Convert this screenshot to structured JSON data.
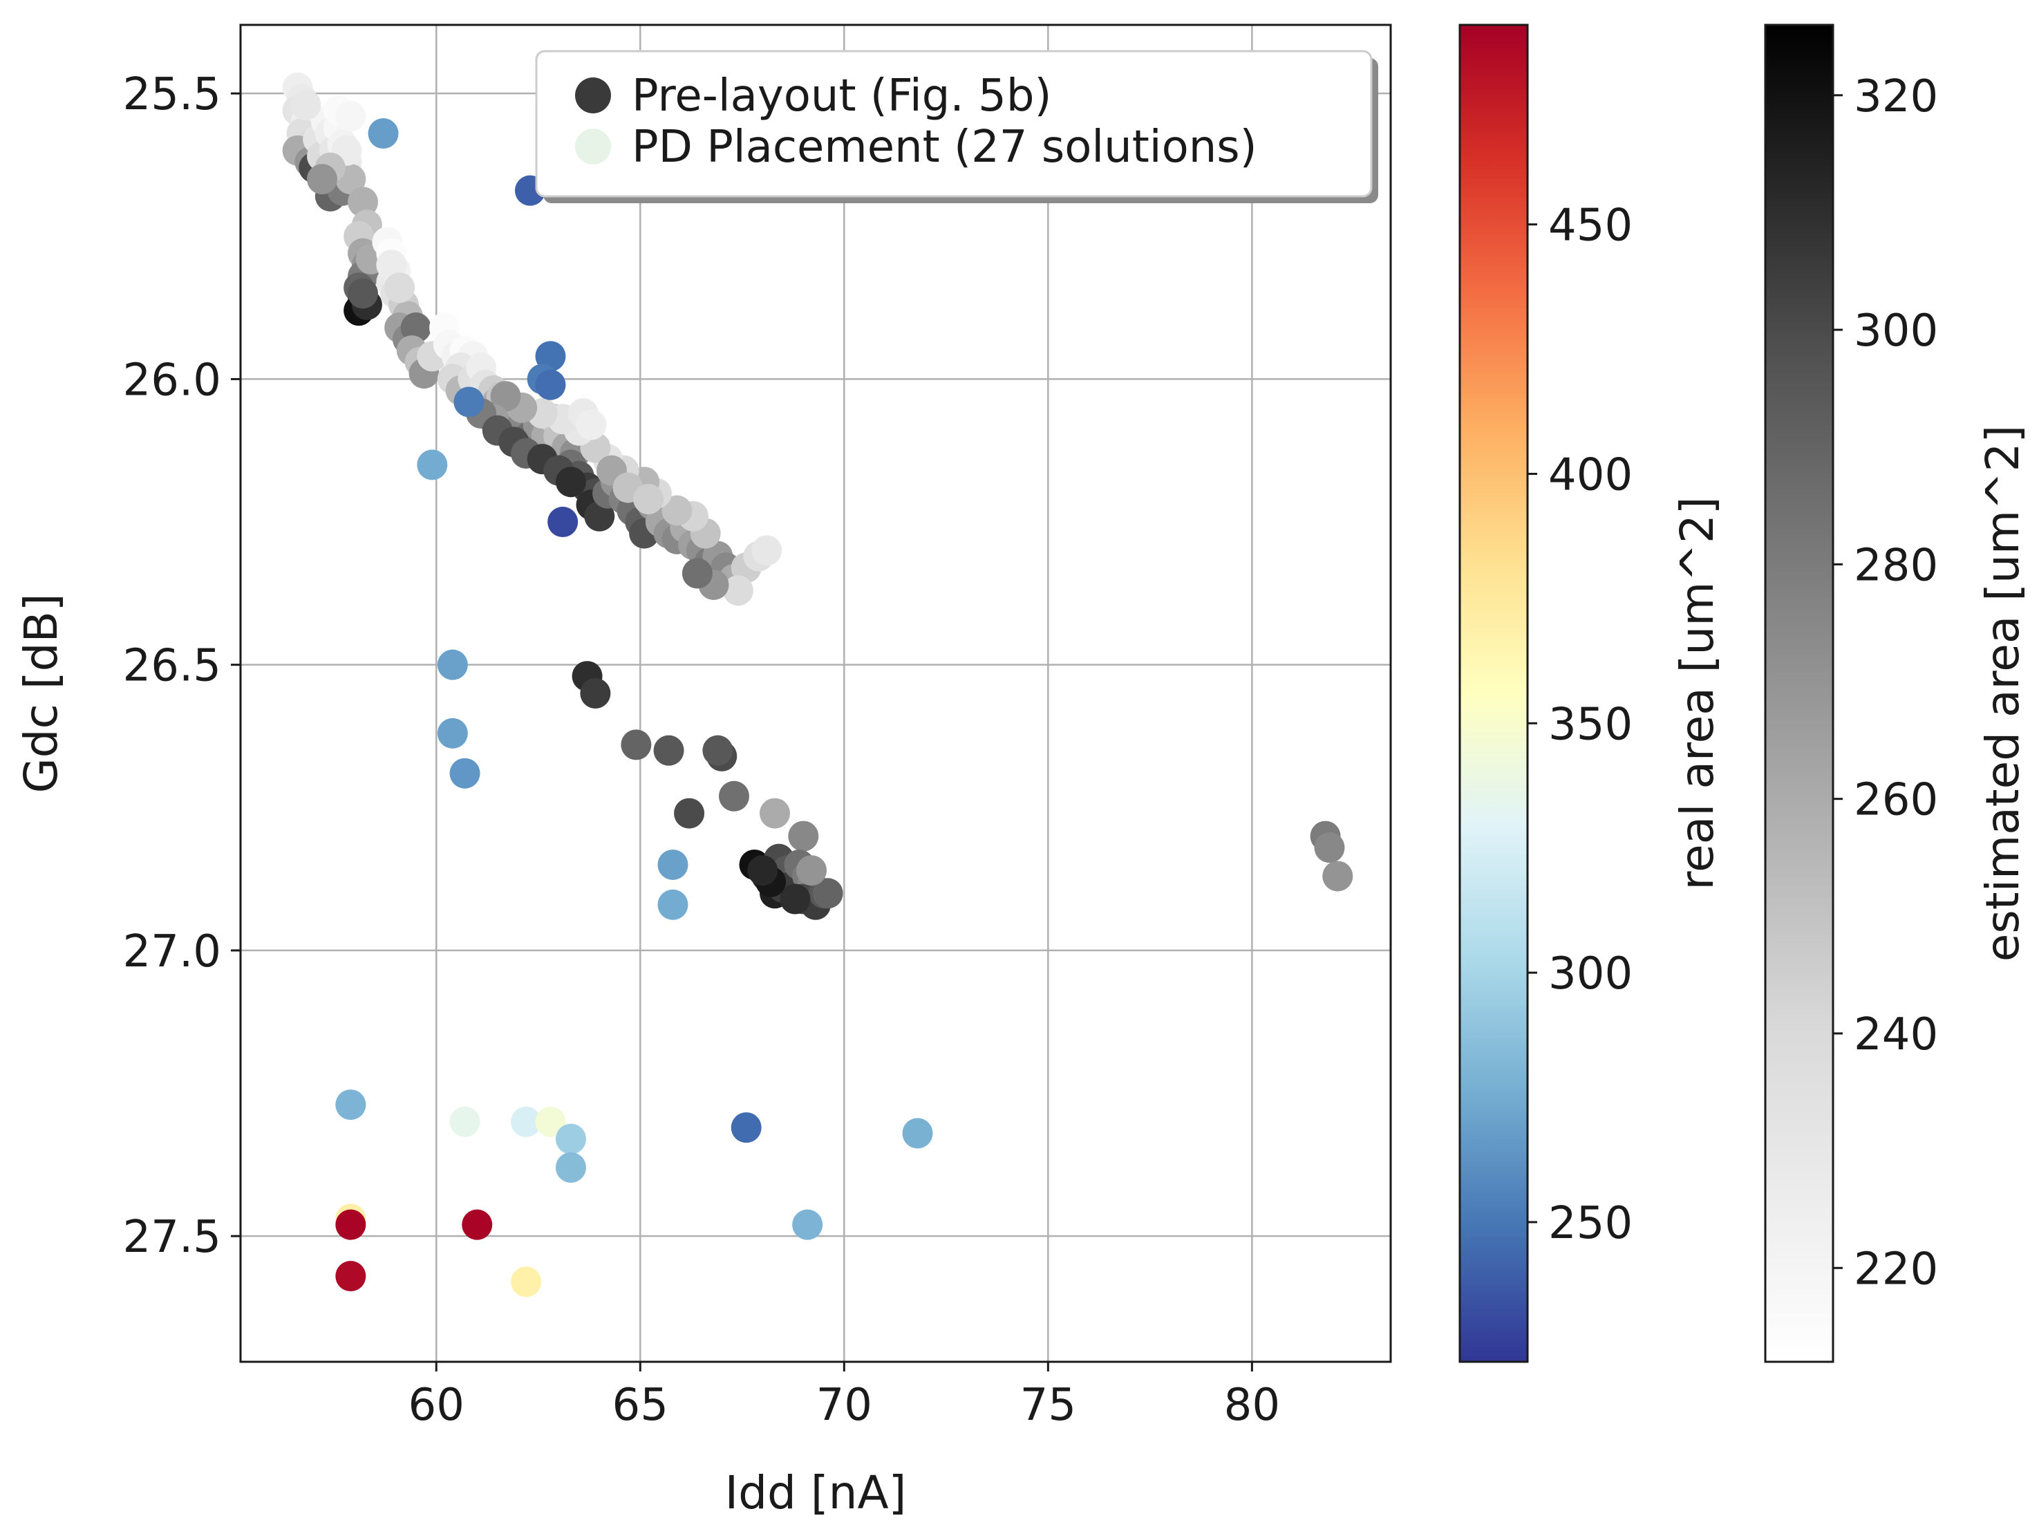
{
  "chart_data": {
    "type": "scatter",
    "xlabel": "Idd [nA]",
    "ylabel": "Gdc [dB]",
    "xlim": [
      55.2,
      83.4
    ],
    "ylim": [
      27.72,
      25.38
    ],
    "y_inverted": true,
    "grid": true,
    "xticks": [
      {
        "value": 60,
        "label": "60"
      },
      {
        "value": 65,
        "label": "65"
      },
      {
        "value": 70,
        "label": "70"
      },
      {
        "value": 75,
        "label": "75"
      },
      {
        "value": 80,
        "label": "80"
      }
    ],
    "yticks": [
      {
        "value": 25.5,
        "label": "25.5"
      },
      {
        "value": 26.0,
        "label": "26.0"
      },
      {
        "value": 26.5,
        "label": "26.5"
      },
      {
        "value": 27.0,
        "label": "27.0"
      },
      {
        "value": 27.5,
        "label": "27.5"
      }
    ],
    "legend": {
      "position": "top-right",
      "entries": [
        {
          "label": "Pre-layout (Fig. 5b)",
          "color": "#3a3a3a"
        },
        {
          "label": "PD Placement (27 solutions)",
          "color": "#e8f3e8"
        }
      ]
    },
    "colorbars": [
      {
        "label": "real area [um^2]",
        "range": [
          222,
          490
        ],
        "colormap": "RdYlBu_r",
        "ticks": [
          {
            "value": 250,
            "label": "250"
          },
          {
            "value": 300,
            "label": "300"
          },
          {
            "value": 350,
            "label": "350"
          },
          {
            "value": 400,
            "label": "400"
          },
          {
            "value": 450,
            "label": "450"
          }
        ]
      },
      {
        "label": "estimated area [um^2]",
        "range": [
          212,
          326
        ],
        "colormap": "Greys",
        "ticks": [
          {
            "value": 220,
            "label": "220"
          },
          {
            "value": 240,
            "label": "240"
          },
          {
            "value": 260,
            "label": "260"
          },
          {
            "value": 280,
            "label": "280"
          },
          {
            "value": 300,
            "label": "300"
          },
          {
            "value": 320,
            "label": "320"
          }
        ]
      }
    ],
    "series": [
      {
        "name": "Pre-layout (Fig. 5b)",
        "color_scale": "estimated area [um^2]",
        "points": [
          [
            56.6,
            25.49,
            225
          ],
          [
            56.7,
            25.51,
            228
          ],
          [
            56.6,
            25.53,
            232
          ],
          [
            56.8,
            25.55,
            224
          ],
          [
            56.7,
            25.57,
            236
          ],
          [
            56.9,
            25.59,
            240
          ],
          [
            56.6,
            25.6,
            260
          ],
          [
            56.9,
            25.62,
            270
          ],
          [
            57.0,
            25.63,
            300
          ],
          [
            57.1,
            25.58,
            232
          ],
          [
            57.2,
            25.61,
            238
          ],
          [
            57.3,
            25.55,
            220
          ],
          [
            57.4,
            25.57,
            225
          ],
          [
            57.5,
            25.6,
            230
          ],
          [
            57.6,
            25.56,
            218
          ],
          [
            57.7,
            25.59,
            222
          ],
          [
            57.8,
            25.62,
            228
          ],
          [
            57.6,
            25.64,
            240
          ],
          [
            57.5,
            25.66,
            262
          ],
          [
            57.4,
            25.68,
            290
          ],
          [
            57.7,
            25.67,
            280
          ],
          [
            57.9,
            25.65,
            255
          ],
          [
            57.8,
            25.6,
            226
          ],
          [
            57.4,
            25.63,
            250
          ],
          [
            57.2,
            25.65,
            270
          ],
          [
            57.6,
            25.53,
            216
          ],
          [
            57.9,
            25.54,
            219
          ],
          [
            56.8,
            25.52,
            230
          ],
          [
            58.2,
            25.69,
            258
          ],
          [
            58.3,
            25.73,
            250
          ],
          [
            58.1,
            25.75,
            245
          ],
          [
            58.2,
            25.78,
            262
          ],
          [
            58.3,
            25.8,
            270
          ],
          [
            58.2,
            25.82,
            280
          ],
          [
            58.1,
            25.84,
            290
          ],
          [
            58.2,
            25.86,
            300
          ],
          [
            58.1,
            25.88,
            320
          ],
          [
            58.3,
            25.87,
            310
          ],
          [
            58.2,
            25.85,
            295
          ],
          [
            58.4,
            25.79,
            260
          ],
          [
            58.8,
            25.76,
            218
          ],
          [
            58.9,
            25.78,
            214
          ],
          [
            59.0,
            25.81,
            222
          ],
          [
            58.9,
            25.83,
            228
          ],
          [
            59.0,
            25.85,
            234
          ],
          [
            59.2,
            25.87,
            245
          ],
          [
            59.3,
            25.89,
            255
          ],
          [
            59.1,
            25.91,
            265
          ],
          [
            59.3,
            25.93,
            275
          ],
          [
            59.5,
            25.91,
            285
          ],
          [
            59.4,
            25.95,
            260
          ],
          [
            59.6,
            25.97,
            250
          ],
          [
            59.7,
            25.99,
            270
          ],
          [
            59.9,
            25.96,
            240
          ],
          [
            60.2,
            25.91,
            215
          ],
          [
            60.3,
            25.94,
            218
          ],
          [
            60.5,
            25.96,
            222
          ],
          [
            60.7,
            25.95,
            215
          ],
          [
            60.9,
            25.96,
            220
          ],
          [
            60.6,
            25.98,
            230
          ],
          [
            60.4,
            26.0,
            240
          ],
          [
            60.6,
            26.02,
            255
          ],
          [
            60.9,
            26.0,
            235
          ],
          [
            61.1,
            25.98,
            225
          ],
          [
            61.2,
            26.01,
            232
          ],
          [
            61.4,
            26.02,
            245
          ],
          [
            61.5,
            26.04,
            260
          ],
          [
            61.6,
            26.03,
            248
          ],
          [
            61.8,
            26.05,
            252
          ],
          [
            61.9,
            26.07,
            265
          ],
          [
            62.1,
            26.08,
            275
          ],
          [
            62.3,
            26.1,
            285
          ],
          [
            62.5,
            26.08,
            270
          ],
          [
            62.7,
            26.1,
            260
          ],
          [
            62.9,
            26.07,
            245
          ],
          [
            63.0,
            26.1,
            250
          ],
          [
            63.2,
            26.12,
            262
          ],
          [
            63.4,
            26.13,
            272
          ],
          [
            63.3,
            26.15,
            285
          ],
          [
            63.5,
            26.17,
            295
          ],
          [
            63.7,
            26.19,
            305
          ],
          [
            63.9,
            26.2,
            300
          ],
          [
            63.8,
            26.22,
            310
          ],
          [
            64.0,
            26.24,
            305
          ],
          [
            64.2,
            26.2,
            285
          ],
          [
            64.4,
            26.18,
            270
          ],
          [
            64.6,
            26.21,
            278
          ],
          [
            64.8,
            26.23,
            285
          ],
          [
            65.0,
            26.25,
            292
          ],
          [
            65.1,
            26.27,
            298
          ],
          [
            65.3,
            26.22,
            268
          ],
          [
            65.5,
            26.25,
            262
          ],
          [
            65.7,
            26.27,
            270
          ],
          [
            65.9,
            26.28,
            275
          ],
          [
            66.1,
            26.26,
            260
          ],
          [
            66.3,
            26.29,
            265
          ],
          [
            66.5,
            26.3,
            272
          ],
          [
            66.7,
            26.32,
            280
          ],
          [
            66.9,
            26.31,
            268
          ],
          [
            67.1,
            26.33,
            275
          ],
          [
            67.3,
            26.35,
            260
          ],
          [
            67.6,
            26.33,
            245
          ],
          [
            67.9,
            26.31,
            235
          ],
          [
            68.1,
            26.3,
            230
          ],
          [
            67.4,
            26.37,
            238
          ],
          [
            66.8,
            26.36,
            270
          ],
          [
            66.4,
            26.34,
            285
          ],
          [
            66.6,
            26.27,
            250
          ],
          [
            66.3,
            26.24,
            242
          ],
          [
            65.9,
            26.23,
            250
          ],
          [
            65.4,
            26.2,
            240
          ],
          [
            65.1,
            26.18,
            255
          ],
          [
            64.6,
            26.16,
            240
          ],
          [
            64.2,
            26.14,
            232
          ],
          [
            63.9,
            26.12,
            245
          ],
          [
            63.5,
            26.09,
            230
          ],
          [
            63.1,
            26.07,
            232
          ],
          [
            63.6,
            26.06,
            228
          ],
          [
            63.8,
            26.08,
            225
          ],
          [
            62.6,
            26.06,
            240
          ],
          [
            62.1,
            26.05,
            260
          ],
          [
            61.7,
            26.03,
            270
          ],
          [
            61.4,
            26.07,
            265
          ],
          [
            61.1,
            26.06,
            280
          ],
          [
            61.5,
            26.09,
            295
          ],
          [
            61.9,
            26.11,
            300
          ],
          [
            62.2,
            26.13,
            290
          ],
          [
            62.6,
            26.14,
            305
          ],
          [
            63.0,
            26.16,
            300
          ],
          [
            63.3,
            26.18,
            310
          ],
          [
            64.3,
            26.16,
            262
          ],
          [
            64.7,
            26.19,
            250
          ],
          [
            65.2,
            26.21,
            245
          ],
          [
            58.9,
            25.8,
            226
          ],
          [
            59.1,
            25.84,
            238
          ],
          [
            63.7,
            26.52,
            310
          ],
          [
            63.9,
            26.55,
            305
          ],
          [
            64.9,
            26.64,
            290
          ],
          [
            65.7,
            26.65,
            295
          ],
          [
            67.0,
            26.66,
            300
          ],
          [
            66.9,
            26.65,
            295
          ],
          [
            67.3,
            26.73,
            285
          ],
          [
            66.2,
            26.76,
            300
          ],
          [
            68.3,
            26.76,
            260
          ],
          [
            69.0,
            26.8,
            275
          ],
          [
            67.8,
            26.85,
            320
          ],
          [
            68.1,
            26.87,
            310
          ],
          [
            68.4,
            26.84,
            300
          ],
          [
            68.6,
            26.86,
            295
          ],
          [
            68.8,
            26.88,
            290
          ],
          [
            68.3,
            26.9,
            315
          ],
          [
            68.5,
            26.89,
            305
          ],
          [
            68.9,
            26.85,
            285
          ],
          [
            69.1,
            26.87,
            280
          ],
          [
            69.2,
            26.89,
            275
          ],
          [
            69.0,
            26.91,
            300
          ],
          [
            69.3,
            26.92,
            305
          ],
          [
            69.5,
            26.9,
            295
          ],
          [
            69.6,
            26.9,
            290
          ],
          [
            68.8,
            26.91,
            310
          ],
          [
            68.2,
            26.88,
            318
          ],
          [
            68.0,
            26.86,
            312
          ],
          [
            69.2,
            26.86,
            270
          ],
          [
            81.8,
            26.8,
            280
          ],
          [
            81.9,
            26.82,
            275
          ],
          [
            82.1,
            26.87,
            270
          ]
        ]
      },
      {
        "name": "PD Placement (27 solutions)",
        "color_scale": "real area [um^2]",
        "points": [
          [
            58.7,
            25.57,
            268
          ],
          [
            62.3,
            25.67,
            240
          ],
          [
            62.8,
            25.96,
            248
          ],
          [
            62.6,
            26.0,
            252
          ],
          [
            62.8,
            26.01,
            246
          ],
          [
            60.8,
            26.04,
            252
          ],
          [
            59.9,
            26.15,
            275
          ],
          [
            63.1,
            26.25,
            230
          ],
          [
            60.4,
            26.5,
            270
          ],
          [
            60.4,
            26.62,
            270
          ],
          [
            60.7,
            26.69,
            265
          ],
          [
            65.8,
            26.85,
            270
          ],
          [
            65.8,
            26.92,
            275
          ],
          [
            57.9,
            27.27,
            280
          ],
          [
            60.7,
            27.3,
            335
          ],
          [
            62.2,
            27.3,
            325
          ],
          [
            62.8,
            27.3,
            345
          ],
          [
            63.3,
            27.33,
            295
          ],
          [
            63.3,
            27.38,
            285
          ],
          [
            67.6,
            27.31,
            245
          ],
          [
            71.8,
            27.32,
            278
          ],
          [
            57.9,
            27.47,
            370
          ],
          [
            57.9,
            27.48,
            488
          ],
          [
            61.0,
            27.48,
            488
          ],
          [
            69.1,
            27.48,
            280
          ],
          [
            57.9,
            27.57,
            485
          ],
          [
            62.2,
            27.58,
            368
          ]
        ]
      }
    ]
  }
}
